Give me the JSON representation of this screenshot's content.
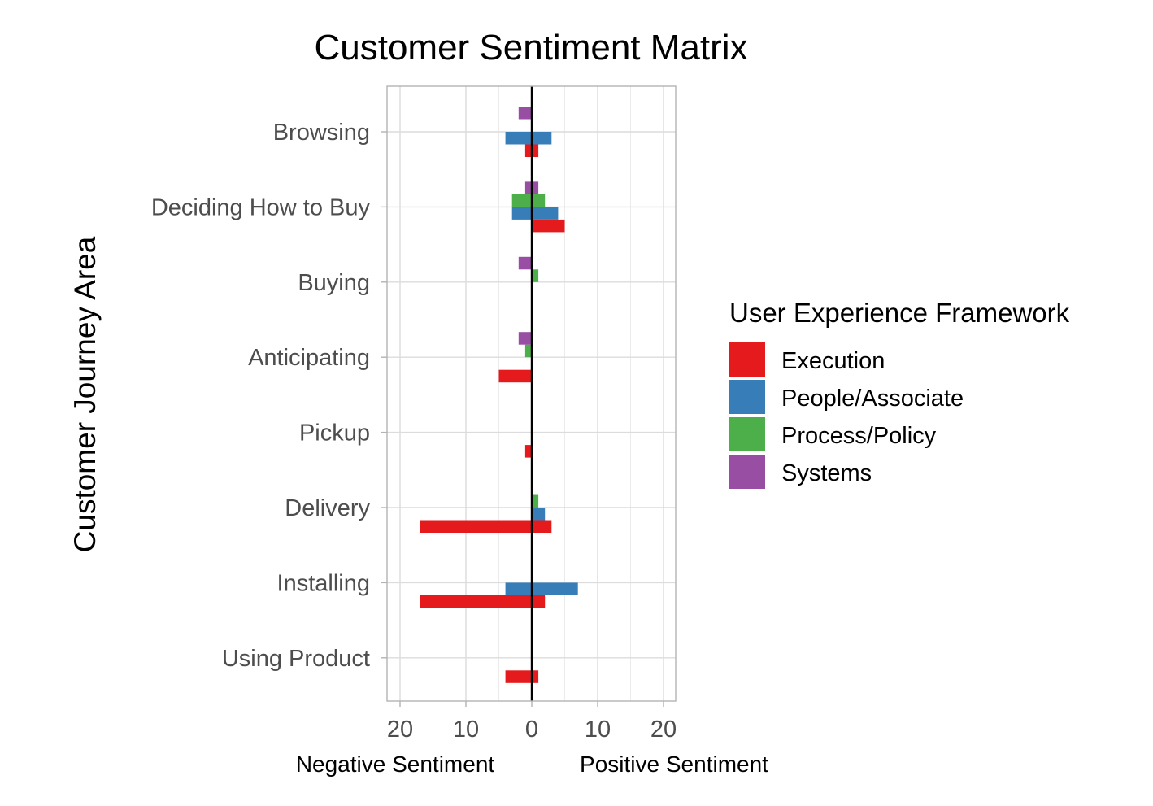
{
  "chart_data": {
    "type": "bar",
    "orientation": "horizontal",
    "title": "Customer Sentiment Matrix",
    "ylabel": "Customer Journey Area",
    "xlabel_left": "Negative Sentiment",
    "xlabel_right": "Positive Sentiment",
    "xlim": [
      -22,
      22
    ],
    "x_ticks": [
      -20,
      -10,
      0,
      10,
      20
    ],
    "x_tick_labels": [
      "20",
      "10",
      "0",
      "10",
      "20"
    ],
    "grid": true,
    "legend": {
      "title": "User Experience Framework",
      "position": "right"
    },
    "categories": [
      "Browsing",
      "Deciding How to Buy",
      "Buying",
      "Anticipating",
      "Pickup",
      "Delivery",
      "Installing",
      "Using Product"
    ],
    "series": [
      {
        "name": "Execution",
        "color": "#E41A1C",
        "negative": [
          -1,
          0,
          0,
          -5,
          -1,
          -17,
          -17,
          -4
        ],
        "positive": [
          1,
          5,
          0,
          0,
          0,
          3,
          2,
          1
        ]
      },
      {
        "name": "People/Associate",
        "color": "#377EB8",
        "negative": [
          -4,
          -3,
          0,
          0,
          0,
          0,
          -4,
          0
        ],
        "positive": [
          3,
          4,
          0,
          0,
          0,
          2,
          7,
          0
        ]
      },
      {
        "name": "Process/Policy",
        "color": "#4DAF4A",
        "negative": [
          0,
          -3,
          0,
          -1,
          0,
          0,
          0,
          0
        ],
        "positive": [
          0,
          2,
          1,
          0,
          0,
          1,
          0,
          0
        ]
      },
      {
        "name": "Systems",
        "color": "#984EA3",
        "negative": [
          -2,
          -1,
          -2,
          -2,
          0,
          0,
          0,
          0
        ],
        "positive": [
          0,
          1,
          0,
          0,
          0,
          0,
          0,
          0
        ]
      }
    ]
  }
}
